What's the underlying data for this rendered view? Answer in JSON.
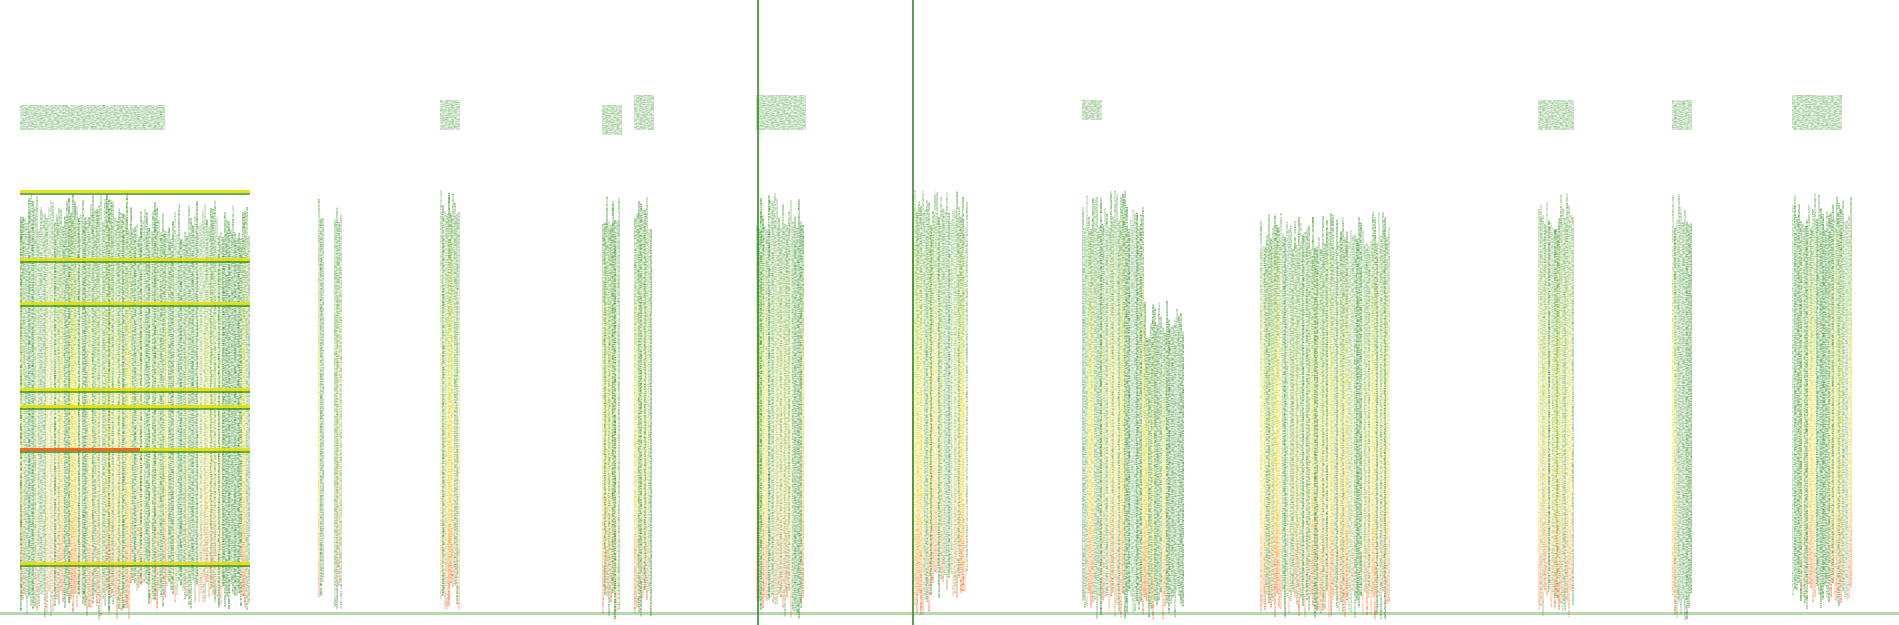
{
  "image": {
    "kind": "spectrogram",
    "background_color": "#ffffff",
    "palette": {
      "low": "#2e8b1e",
      "mid": "#e6e000",
      "high": "#ff5a1e"
    }
  }
}
